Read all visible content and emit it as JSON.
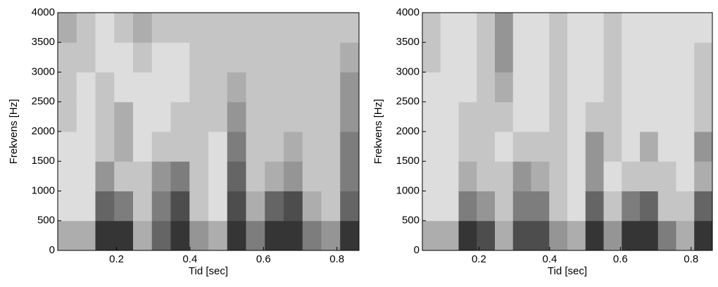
{
  "chart_data": [
    {
      "type": "spectrogram",
      "xlabel": "Tid [sec]",
      "ylabel": "Frekvens [Hz]",
      "xlim": [
        0.04,
        0.86
      ],
      "ylim": [
        0,
        4000
      ],
      "xticks": [
        0.2,
        0.4,
        0.6,
        0.8
      ],
      "yticks": [
        0,
        500,
        1000,
        1500,
        2000,
        2500,
        3000,
        3500,
        4000
      ],
      "values": [
        [
          3,
          3,
          8,
          8,
          3,
          6,
          8,
          4,
          3,
          8,
          5,
          8,
          8,
          5,
          4,
          8
        ],
        [
          1,
          1,
          6,
          5,
          2,
          5,
          7,
          2,
          1,
          7,
          3,
          6,
          7,
          3,
          2,
          6
        ],
        [
          1,
          1,
          4,
          2,
          2,
          4,
          5,
          2,
          1,
          6,
          2,
          3,
          4,
          2,
          2,
          5
        ],
        [
          1,
          1,
          2,
          3,
          1,
          2,
          2,
          2,
          1,
          5,
          2,
          2,
          3,
          2,
          2,
          5
        ],
        [
          2,
          1,
          2,
          3,
          1,
          1,
          2,
          2,
          2,
          4,
          2,
          2,
          2,
          2,
          2,
          4
        ],
        [
          2,
          1,
          2,
          1,
          1,
          1,
          1,
          2,
          2,
          3,
          2,
          2,
          2,
          2,
          2,
          4
        ],
        [
          2,
          2,
          1,
          1,
          2,
          1,
          1,
          2,
          2,
          2,
          2,
          2,
          2,
          2,
          2,
          3
        ],
        [
          3,
          2,
          1,
          2,
          3,
          2,
          2,
          2,
          2,
          2,
          2,
          2,
          2,
          2,
          2,
          2
        ]
      ]
    },
    {
      "type": "spectrogram",
      "xlabel": "Tid [sec]",
      "ylabel": "Frekvens [Hz]",
      "xlim": [
        0.04,
        0.86
      ],
      "ylim": [
        0,
        4000
      ],
      "xticks": [
        0.2,
        0.4,
        0.6,
        0.8
      ],
      "yticks": [
        0,
        500,
        1000,
        1500,
        2000,
        2500,
        3000,
        3500,
        4000
      ],
      "values": [
        [
          3,
          3,
          8,
          7,
          3,
          7,
          7,
          4,
          3,
          8,
          4,
          8,
          8,
          5,
          3,
          8
        ],
        [
          1,
          1,
          5,
          4,
          2,
          5,
          5,
          2,
          1,
          6,
          2,
          5,
          6,
          2,
          2,
          6
        ],
        [
          1,
          1,
          3,
          2,
          2,
          4,
          3,
          2,
          1,
          4,
          1,
          2,
          2,
          2,
          1,
          3
        ],
        [
          1,
          1,
          2,
          2,
          1,
          2,
          2,
          2,
          1,
          4,
          2,
          1,
          3,
          1,
          1,
          4
        ],
        [
          1,
          1,
          2,
          2,
          2,
          1,
          1,
          2,
          1,
          2,
          2,
          1,
          1,
          1,
          1,
          2
        ],
        [
          1,
          1,
          1,
          2,
          3,
          1,
          1,
          2,
          1,
          1,
          2,
          1,
          1,
          1,
          1,
          2
        ],
        [
          2,
          1,
          1,
          2,
          4,
          1,
          1,
          2,
          1,
          1,
          2,
          1,
          1,
          1,
          1,
          2
        ],
        [
          2,
          1,
          1,
          2,
          4,
          1,
          1,
          2,
          1,
          1,
          2,
          1,
          1,
          1,
          1,
          1
        ]
      ]
    }
  ]
}
